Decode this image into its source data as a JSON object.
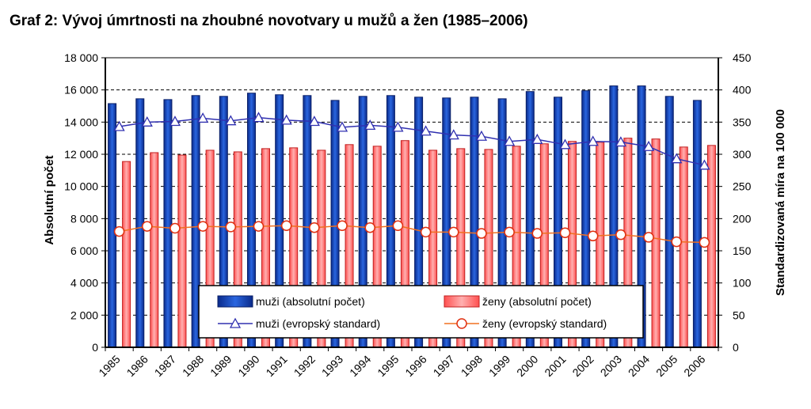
{
  "title": "Graf 2: Vývoj úmrtnosti na zhoubné novotvary u mužů a žen (1985–2006)",
  "chart_data": {
    "type": "bar",
    "categories": [
      "1985",
      "1986",
      "1987",
      "1988",
      "1989",
      "1990",
      "1991",
      "1992",
      "1993",
      "1994",
      "1995",
      "1996",
      "1997",
      "1998",
      "1999",
      "2000",
      "2001",
      "2002",
      "2003",
      "2004",
      "2005",
      "2006"
    ],
    "ylabel": "Absolutní počet",
    "y2label": "Standardizovaná míra na 100 000",
    "ylim": [
      0,
      18000
    ],
    "y2lim": [
      0,
      450
    ],
    "yticks": [
      "0",
      "2 000",
      "4 000",
      "6 000",
      "8 000",
      "10 000",
      "12 000",
      "14 000",
      "16 000",
      "18 000"
    ],
    "y2ticks": [
      "0",
      "50",
      "100",
      "150",
      "200",
      "250",
      "300",
      "350",
      "400",
      "450"
    ],
    "grid": true,
    "legend_position": "bottom-center",
    "series": [
      {
        "name": "muži (absolutní počet)",
        "kind": "bar",
        "axis": "left",
        "color": "#1f4fc0",
        "values": [
          15150,
          15450,
          15400,
          15650,
          15600,
          15800,
          15700,
          15650,
          15350,
          15600,
          15650,
          15550,
          15500,
          15550,
          15450,
          15900,
          15550,
          15950,
          16250,
          16250,
          15600,
          15350
        ]
      },
      {
        "name": "ženy (absolutní počet)",
        "kind": "bar",
        "axis": "left",
        "color": "#ff7070",
        "values": [
          11550,
          12100,
          11950,
          12250,
          12150,
          12350,
          12400,
          12250,
          12600,
          12500,
          12850,
          12250,
          12350,
          12300,
          12500,
          12650,
          12800,
          12750,
          13000,
          12950,
          12450,
          12550
        ]
      },
      {
        "name": "muži (evropský standard)",
        "kind": "line",
        "axis": "right",
        "color": "#3030b0",
        "values": [
          343,
          350,
          351,
          356,
          352,
          357,
          353,
          351,
          342,
          345,
          342,
          336,
          330,
          328,
          320,
          323,
          315,
          320,
          319,
          312,
          293,
          283
        ]
      },
      {
        "name": "ženy (evropský standard)",
        "kind": "line",
        "axis": "right",
        "color": "#f07020",
        "values": [
          180,
          188,
          185,
          188,
          187,
          188,
          189,
          186,
          189,
          186,
          189,
          179,
          179,
          177,
          179,
          177,
          178,
          173,
          175,
          171,
          164,
          163
        ]
      }
    ]
  }
}
